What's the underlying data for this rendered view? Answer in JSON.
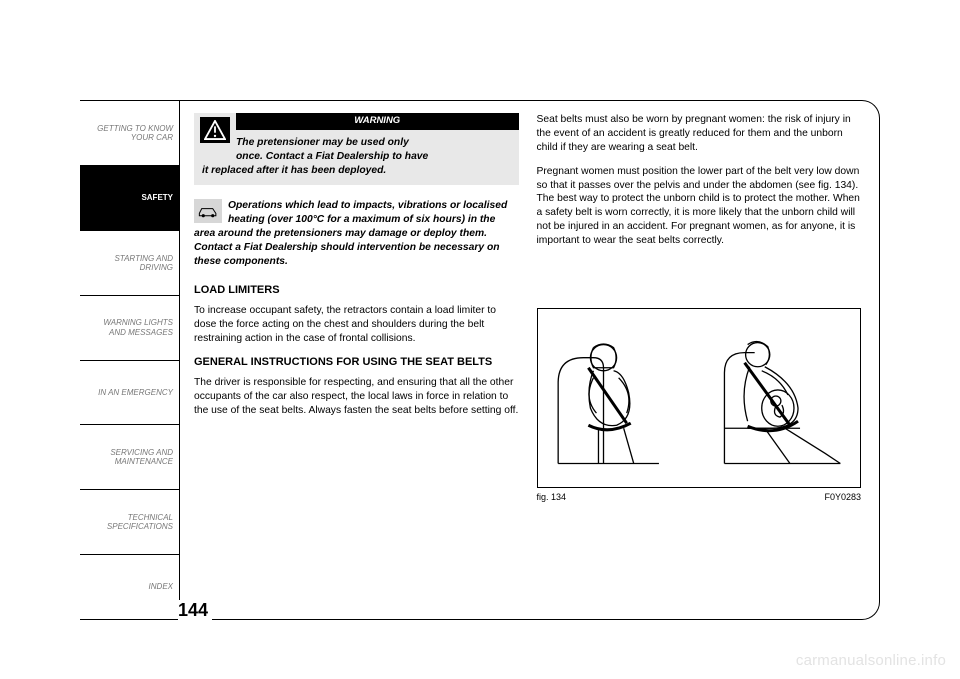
{
  "sidebar": {
    "tabs": [
      {
        "label": "GETTING TO KNOW\nYOUR CAR",
        "active": false
      },
      {
        "label": "SAFETY",
        "active": true
      },
      {
        "label": "STARTING AND\nDRIVING",
        "active": false
      },
      {
        "label": "WARNING LIGHTS\nAND MESSAGES",
        "active": false
      },
      {
        "label": "IN AN EMERGENCY",
        "active": false
      },
      {
        "label": "SERVICING AND\nMAINTENANCE",
        "active": false
      },
      {
        "label": "TECHNICAL\nSPECIFICATIONS",
        "active": false
      },
      {
        "label": "INDEX",
        "active": false
      }
    ]
  },
  "left_column": {
    "warning": {
      "header": "WARNING",
      "line1": "The pretensioner may be used only",
      "line2": "once. Contact a Fiat Dealership to have",
      "line3": "it replaced after it has been deployed."
    },
    "note": {
      "text": "Operations which lead to impacts, vibrations or localised heating (over 100°C for a maximum of six hours) in the area around the pretensioners may damage or deploy them. Contact a Fiat Dealership should intervention be necessary on these components."
    },
    "section1": {
      "title": "LOAD LIMITERS",
      "body": "To increase occupant safety, the retractors contain a load limiter to dose the force acting on the chest and shoulders during the belt restraining action in the case of frontal collisions."
    },
    "section2": {
      "title": "GENERAL INSTRUCTIONS FOR USING THE SEAT BELTS",
      "body": "The driver is responsible for respecting, and ensuring that all the other occupants of the car also respect, the local laws in force in relation to the use of the seat belts. Always fasten the seat belts before setting off."
    }
  },
  "right_column": {
    "para1": "Seat belts must also be worn by pregnant women: the risk of injury in the event of an accident is greatly reduced for them and the unborn child if they are wearing a seat belt.",
    "para2": "Pregnant women must position the lower part of the belt very low down so that it passes over the pelvis and under the abdomen (see fig. 134). The best way to protect the unborn child is to protect the mother. When a safety belt is worn correctly, it is more likely that the unborn child will not be injured in an accident. For pregnant women, as for anyone, it is important to wear the seat belts correctly.",
    "figure": {
      "label": "fig. 134",
      "code": "F0Y0283"
    }
  },
  "page_number": "144",
  "watermark": "carmanualsonline.info",
  "colors": {
    "page_bg": "#ffffff",
    "border": "#000000",
    "tab_inactive_text": "#777777",
    "tab_active_bg": "#000000",
    "tab_active_text": "#ffffff",
    "warning_bg": "#e8e8e8",
    "warning_header_bg": "#000000",
    "note_icon_bg": "#d7d7d7",
    "watermark_color": "#e3e3e3"
  }
}
